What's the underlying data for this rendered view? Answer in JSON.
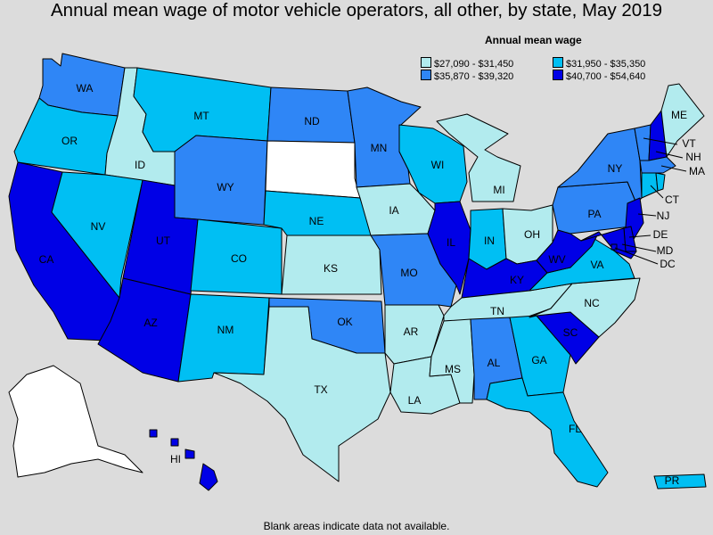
{
  "title": "Annual mean wage of motor vehicle operators, all other, by state, May 2019",
  "legend": {
    "title": "Annual mean wage",
    "items": [
      {
        "label": "$27,090 - $31,450",
        "color": "#b2ebee"
      },
      {
        "label": "$31,950 - $35,350",
        "color": "#00bff3"
      },
      {
        "label": "$35,870 - $39,320",
        "color": "#2f86f6"
      },
      {
        "label": "$40,700 - $54,640",
        "color": "#0000e6"
      }
    ]
  },
  "no_data_color": "#ffffff",
  "footer": "Blank areas indicate data not available.",
  "states": {
    "WA": {
      "label": "WA",
      "bin": 2
    },
    "OR": {
      "label": "OR",
      "bin": 1
    },
    "CA": {
      "label": "CA",
      "bin": 3
    },
    "ID": {
      "label": "ID",
      "bin": 0
    },
    "NV": {
      "label": "NV",
      "bin": 1
    },
    "MT": {
      "label": "MT",
      "bin": 1
    },
    "WY": {
      "label": "WY",
      "bin": 2
    },
    "UT": {
      "label": "UT",
      "bin": 3
    },
    "AZ": {
      "label": "AZ",
      "bin": 3
    },
    "CO": {
      "label": "CO",
      "bin": 1
    },
    "NM": {
      "label": "NM",
      "bin": 1
    },
    "ND": {
      "label": "ND",
      "bin": 2
    },
    "SD": {
      "label": "",
      "bin": -1
    },
    "NE": {
      "label": "NE",
      "bin": 1
    },
    "KS": {
      "label": "KS",
      "bin": 0
    },
    "OK": {
      "label": "OK",
      "bin": 2
    },
    "TX": {
      "label": "TX",
      "bin": 0
    },
    "MN": {
      "label": "MN",
      "bin": 2
    },
    "IA": {
      "label": "IA",
      "bin": 0
    },
    "MO": {
      "label": "MO",
      "bin": 2
    },
    "AR": {
      "label": "AR",
      "bin": 0
    },
    "LA": {
      "label": "LA",
      "bin": 0
    },
    "WI": {
      "label": "WI",
      "bin": 1
    },
    "IL": {
      "label": "IL",
      "bin": 3
    },
    "MI": {
      "label": "MI",
      "bin": 0
    },
    "IN": {
      "label": "IN",
      "bin": 1
    },
    "OH": {
      "label": "OH",
      "bin": 0
    },
    "KY": {
      "label": "KY",
      "bin": 3
    },
    "TN": {
      "label": "TN",
      "bin": 0
    },
    "MS": {
      "label": "MS",
      "bin": 0
    },
    "AL": {
      "label": "AL",
      "bin": 2
    },
    "GA": {
      "label": "GA",
      "bin": 1
    },
    "FL": {
      "label": "FL",
      "bin": 1
    },
    "SC": {
      "label": "SC",
      "bin": 3
    },
    "NC": {
      "label": "NC",
      "bin": 0
    },
    "VA": {
      "label": "VA",
      "bin": 1
    },
    "WV": {
      "label": "WV",
      "bin": 3
    },
    "PA": {
      "label": "PA",
      "bin": 2
    },
    "NY": {
      "label": "NY",
      "bin": 2
    },
    "ME": {
      "label": "ME",
      "bin": 0
    },
    "VT": {
      "label": "VT",
      "bin": 2
    },
    "NH": {
      "label": "NH",
      "bin": 3
    },
    "MA": {
      "label": "MA",
      "bin": 2
    },
    "CT": {
      "label": "CT",
      "bin": 1
    },
    "RI": {
      "label": "",
      "bin": 1
    },
    "NJ": {
      "label": "NJ",
      "bin": 3
    },
    "DE": {
      "label": "DE",
      "bin": 3
    },
    "MD": {
      "label": "MD",
      "bin": 3
    },
    "DC": {
      "label": "DC",
      "bin": 3
    },
    "AK": {
      "label": "",
      "bin": -1
    },
    "HI": {
      "label": "HI",
      "bin": 3
    },
    "PR": {
      "label": "PR",
      "bin": 1
    }
  }
}
